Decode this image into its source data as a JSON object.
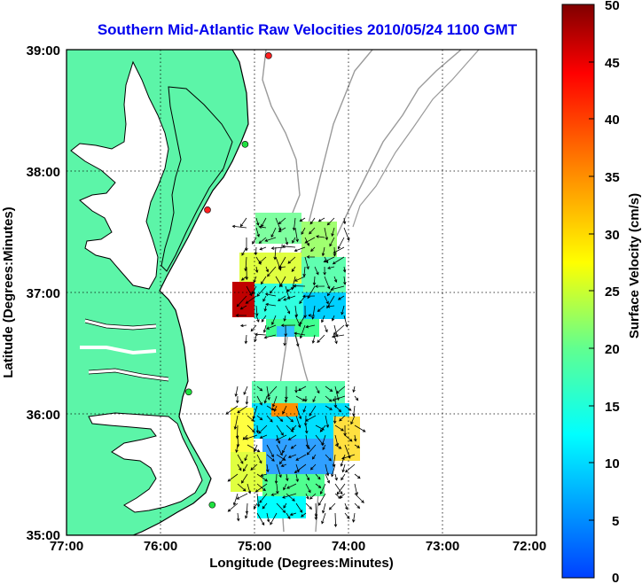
{
  "title": "Southern Mid-Atlantic Raw Velocities 2010/05/24 1100 GMT",
  "x_axis": {
    "label": "Longitude (Degrees:Minutes)",
    "ticks": [
      "77:00",
      "76:00",
      "75:00",
      "74:00",
      "73:00",
      "72:00"
    ]
  },
  "y_axis": {
    "label": "Latitude (Degrees:Minutes)",
    "ticks": [
      "39:00",
      "38:00",
      "37:00",
      "36:00",
      "35:00"
    ]
  },
  "colorbar": {
    "label": "Surface Velocity (cm/s)",
    "ticks": [
      "50",
      "45",
      "40",
      "35",
      "30",
      "25",
      "20",
      "15",
      "10",
      "5",
      "0"
    ],
    "min": 0,
    "max": 50,
    "colormap": [
      "#0040ff",
      "#00ffff",
      "#60ff90",
      "#ffff00",
      "#ff8000",
      "#ff0000",
      "#800000"
    ]
  },
  "extent": {
    "lon": [
      -77,
      -72
    ],
    "lat": [
      35,
      39
    ]
  },
  "colors": {
    "land": "#5cf5a8",
    "coastline": "#000000",
    "bathymetry": "#9a9a9a",
    "grid": "#000000"
  },
  "stations": [
    {
      "lon": -74.85,
      "lat": 38.95,
      "color": "red"
    },
    {
      "lon": -75.1,
      "lat": 38.22,
      "color": "green"
    },
    {
      "lon": -75.5,
      "lat": 37.68,
      "color": "red"
    },
    {
      "lon": -75.7,
      "lat": 36.18,
      "color": "green"
    },
    {
      "lon": -75.45,
      "lat": 35.25,
      "color": "green"
    }
  ]
}
